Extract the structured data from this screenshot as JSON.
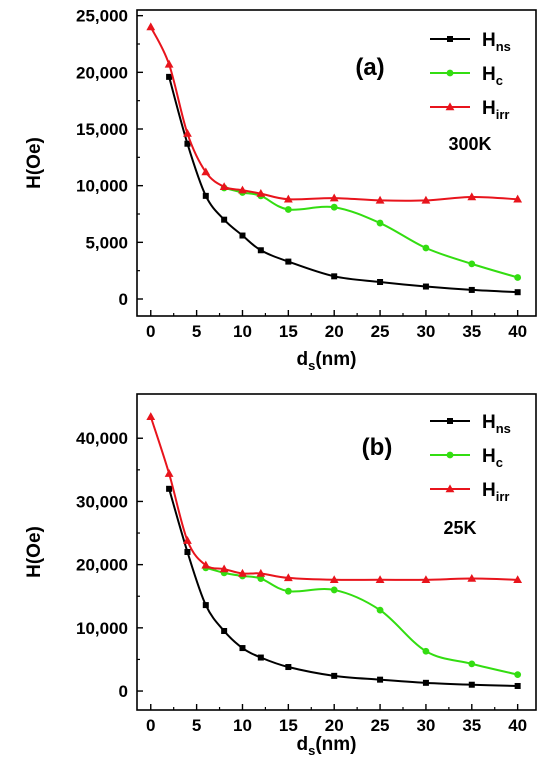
{
  "chart_data": [
    {
      "type": "line",
      "panel_label": "(a)",
      "temperature_label": "300K",
      "xlabel": {
        "main": "d",
        "sub": "s",
        "rest": "(nm)"
      },
      "ylabel": "H(Oe)",
      "xlim": [
        -1.5,
        42
      ],
      "ylim": [
        -1500,
        25500
      ],
      "xticks": [
        0,
        5,
        10,
        15,
        20,
        25,
        30,
        35,
        40
      ],
      "yticks": [
        0,
        5000,
        10000,
        15000,
        20000,
        25000
      ],
      "ytick_labels": [
        "0",
        "5,000",
        "10,000",
        "15,000",
        "20,000",
        "25,000"
      ],
      "grid": false,
      "legend_position": "top-right",
      "series": [
        {
          "name": "H",
          "name_sub": "ns",
          "color": "#000000",
          "marker": "square",
          "x": [
            2,
            4,
            6,
            8,
            10,
            12,
            15,
            20,
            25,
            30,
            35,
            40
          ],
          "y": [
            19600,
            13700,
            9100,
            7000,
            5600,
            4300,
            3300,
            2000,
            1500,
            1100,
            800,
            600
          ]
        },
        {
          "name": "H",
          "name_sub": "c",
          "color": "#33dd11",
          "marker": "circle",
          "x": [
            8,
            10,
            12,
            15,
            20,
            25,
            30,
            35,
            40
          ],
          "y": [
            9800,
            9400,
            9100,
            7900,
            8100,
            6700,
            4500,
            3100,
            1900
          ]
        },
        {
          "name": "H",
          "name_sub": "irr",
          "color": "#e8141c",
          "marker": "triangle",
          "x": [
            0,
            2,
            4,
            6,
            8,
            10,
            12,
            15,
            20,
            25,
            30,
            35,
            40
          ],
          "y": [
            24000,
            20700,
            14600,
            11200,
            9900,
            9600,
            9300,
            8800,
            8900,
            8700,
            8700,
            9000,
            8800
          ]
        }
      ]
    },
    {
      "type": "line",
      "panel_label": "(b)",
      "temperature_label": "25K",
      "xlabel": {
        "main": "d",
        "sub": "s",
        "rest": "(nm)"
      },
      "ylabel": "H(Oe)",
      "xlim": [
        -1.5,
        42
      ],
      "ylim": [
        -3000,
        47000
      ],
      "xticks": [
        0,
        5,
        10,
        15,
        20,
        25,
        30,
        35,
        40
      ],
      "yticks": [
        0,
        10000,
        20000,
        30000,
        40000
      ],
      "ytick_labels": [
        "0",
        "10,000",
        "20,000",
        "30,000",
        "40,000"
      ],
      "grid": false,
      "legend_position": "top-right",
      "series": [
        {
          "name": "H",
          "name_sub": "ns",
          "color": "#000000",
          "marker": "square",
          "x": [
            2,
            4,
            6,
            8,
            10,
            12,
            15,
            20,
            25,
            30,
            35,
            40
          ],
          "y": [
            32000,
            22000,
            13600,
            9500,
            6800,
            5300,
            3800,
            2400,
            1800,
            1300,
            1000,
            800
          ]
        },
        {
          "name": "H",
          "name_sub": "c",
          "color": "#33dd11",
          "marker": "circle",
          "x": [
            6,
            8,
            10,
            12,
            15,
            20,
            25,
            30,
            35,
            40
          ],
          "y": [
            19500,
            18700,
            18200,
            17800,
            15800,
            16000,
            12800,
            6300,
            4300,
            2600
          ]
        },
        {
          "name": "H",
          "name_sub": "irr",
          "color": "#e8141c",
          "marker": "triangle",
          "x": [
            0,
            2,
            4,
            6,
            8,
            10,
            12,
            15,
            20,
            25,
            30,
            35,
            40
          ],
          "y": [
            43400,
            34400,
            23800,
            19900,
            19300,
            18600,
            18600,
            17900,
            17600,
            17600,
            17600,
            17800,
            17600
          ]
        }
      ]
    }
  ]
}
